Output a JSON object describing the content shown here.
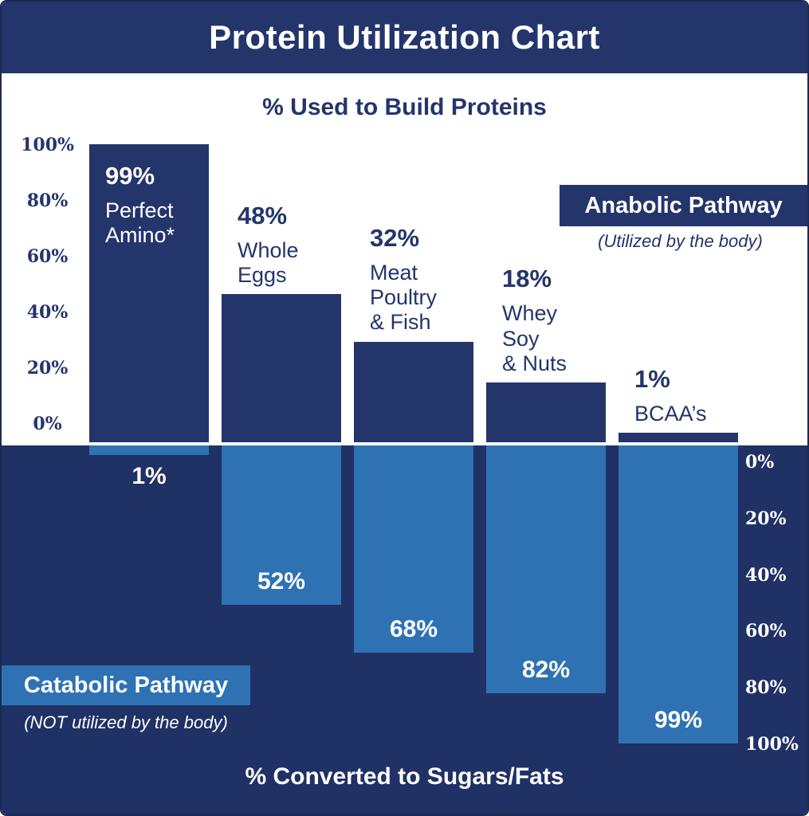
{
  "header": {
    "title": "Protein Utilization Chart"
  },
  "anabolic": {
    "section_title": "% Used to Build Proteins",
    "legend_label": "Anabolic Pathway",
    "legend_note": "(Utilized by the body)",
    "axis_ticks": [
      "100%",
      "80%",
      "60%",
      "40%",
      "20%",
      "0%"
    ]
  },
  "catabolic": {
    "section_title": "% Converted to Sugars/Fats",
    "legend_label": "Catabolic Pathway",
    "legend_note": "(NOT utilized by the body)",
    "axis_ticks": [
      "0%",
      "20%",
      "40%",
      "60%",
      "80%",
      "100%"
    ]
  },
  "bars": [
    {
      "pct_top": "99%",
      "name": "Perfect\nAmino*",
      "pct_bottom": "1%"
    },
    {
      "pct_top": "48%",
      "name": "Whole\nEggs",
      "pct_bottom": "52%"
    },
    {
      "pct_top": "32%",
      "name": "Meat\nPoultry\n& Fish",
      "pct_bottom": "68%"
    },
    {
      "pct_top": "18%",
      "name": "Whey\nSoy\n& Nuts",
      "pct_bottom": "82%"
    },
    {
      "pct_top": "1%",
      "name": "BCAA’s",
      "pct_bottom": "99%"
    }
  ],
  "chart_data": {
    "type": "bar",
    "title": "Protein Utilization Chart",
    "categories": [
      "Perfect Amino*",
      "Whole Eggs",
      "Meat Poultry & Fish",
      "Whey Soy & Nuts",
      "BCAA's"
    ],
    "series": [
      {
        "name": "% Used to Build Proteins (Anabolic Pathway — Utilized by the body)",
        "values": [
          99,
          48,
          32,
          18,
          1
        ]
      },
      {
        "name": "% Converted to Sugars/Fats (Catabolic Pathway — NOT utilized by the body)",
        "values": [
          1,
          52,
          68,
          82,
          99
        ]
      }
    ],
    "axis_range": [
      0,
      100
    ],
    "tick_step": 20,
    "grid": false,
    "legend_position": "anabolic top-right, catabolic bottom-left",
    "orientation": "diverging vertical: anabolic bars grow up on white field, catabolic bars grow down on navy field"
  },
  "colors": {
    "navy": "#23356B",
    "navy_deep": "#203165",
    "blue": "#2E72B4",
    "white": "#FFFFFF"
  }
}
